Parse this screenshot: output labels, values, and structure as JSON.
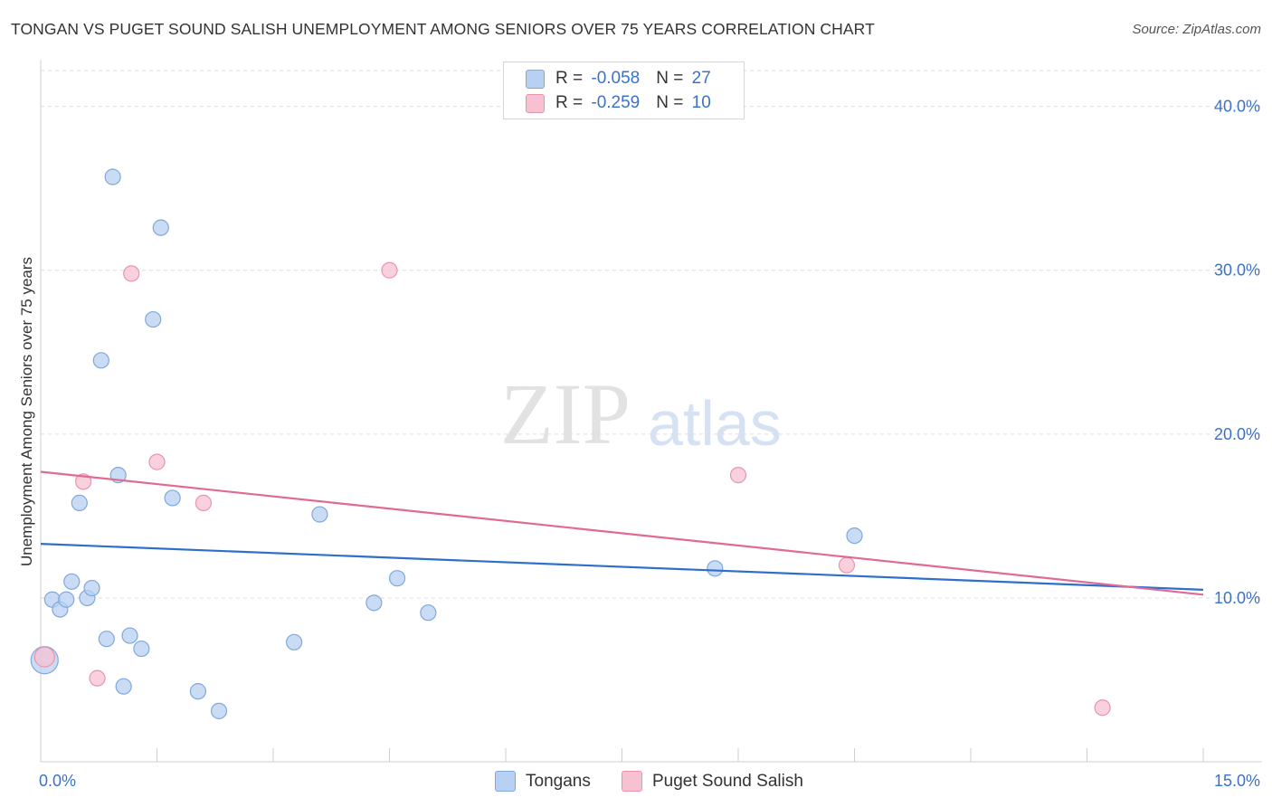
{
  "header": {
    "title": "TONGAN VS PUGET SOUND SALISH UNEMPLOYMENT AMONG SENIORS OVER 75 YEARS CORRELATION CHART",
    "source": "Source: ZipAtlas.com"
  },
  "watermark": {
    "zip": "ZIP",
    "atlas": "atlas"
  },
  "legend": {
    "rows": [
      {
        "r_label": "R = ",
        "r_value": "-0.058",
        "n_label": "N = ",
        "n_value": "27",
        "color": "#b8d0f1"
      },
      {
        "r_label": "R = ",
        "r_value": "-0.259",
        "n_label": "N = ",
        "n_value": "10",
        "color": "#f7c1d1"
      }
    ]
  },
  "bottom_legend": {
    "series1": "Tongans",
    "series2": "Puget Sound Salish"
  },
  "chart_data": {
    "type": "scatter",
    "ylabel": "Unemployment Among Seniors over 75 years",
    "xlim": [
      0,
      15
    ],
    "ylim": [
      0,
      42.3
    ],
    "x_tick_labels": [
      "0.0%",
      "15.0%"
    ],
    "y_ticks": [
      10,
      20,
      30,
      40
    ],
    "y_tick_labels": [
      "10.0%",
      "20.0%",
      "30.0%",
      "40.0%"
    ],
    "grid": true,
    "series": [
      {
        "name": "Tongans",
        "color": "#b8d0f1",
        "stroke": "#7fa8dc",
        "line_color": "#2f6fcc",
        "trend": [
          [
            0,
            13.3
          ],
          [
            15,
            10.5
          ]
        ],
        "points": [
          [
            0.05,
            6.2
          ],
          [
            0.15,
            9.9
          ],
          [
            0.25,
            9.3
          ],
          [
            0.33,
            9.9
          ],
          [
            0.4,
            11.0
          ],
          [
            0.5,
            15.8
          ],
          [
            0.6,
            10.0
          ],
          [
            0.66,
            10.6
          ],
          [
            0.78,
            24.5
          ],
          [
            0.85,
            7.5
          ],
          [
            0.93,
            35.7
          ],
          [
            1.0,
            17.5
          ],
          [
            1.07,
            4.6
          ],
          [
            1.15,
            7.7
          ],
          [
            1.3,
            6.9
          ],
          [
            1.45,
            27.0
          ],
          [
            1.55,
            32.6
          ],
          [
            1.7,
            16.1
          ],
          [
            2.03,
            4.3
          ],
          [
            2.3,
            3.1
          ],
          [
            3.27,
            7.3
          ],
          [
            3.6,
            15.1
          ],
          [
            4.3,
            9.7
          ],
          [
            4.6,
            11.2
          ],
          [
            5.0,
            9.1
          ],
          [
            8.7,
            11.8
          ],
          [
            10.5,
            13.8
          ]
        ]
      },
      {
        "name": "Puget Sound Salish",
        "color": "#f7c1d1",
        "stroke": "#ea93ae",
        "line_color": "#e06a93",
        "trend": [
          [
            0,
            17.7
          ],
          [
            15,
            10.2
          ]
        ],
        "points": [
          [
            0.05,
            6.4
          ],
          [
            0.55,
            17.1
          ],
          [
            0.73,
            5.1
          ],
          [
            1.17,
            29.8
          ],
          [
            1.5,
            18.3
          ],
          [
            2.1,
            15.8
          ],
          [
            4.5,
            30.0
          ],
          [
            9.0,
            17.5
          ],
          [
            10.4,
            12.0
          ],
          [
            13.7,
            3.3
          ]
        ]
      }
    ]
  }
}
